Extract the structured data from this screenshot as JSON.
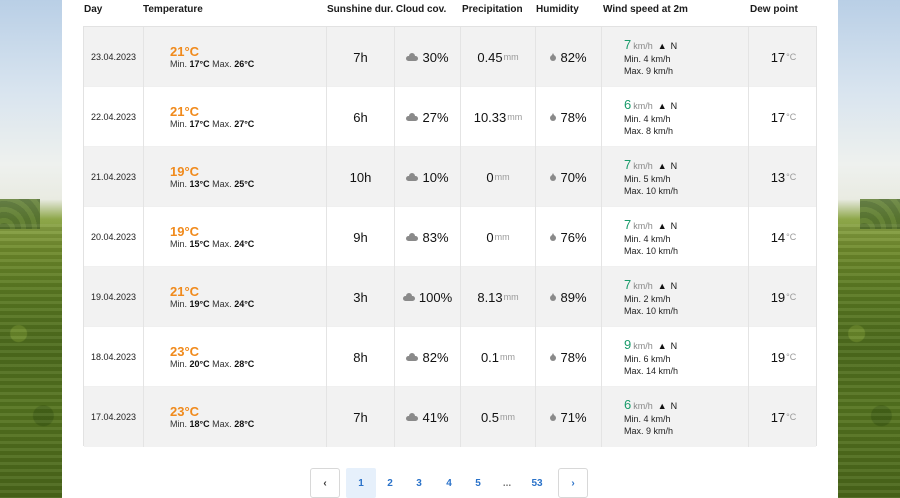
{
  "headers": {
    "day": "Day",
    "temperature": "Temperature",
    "sunshine_cloud": "Sunshine dur. Cloud cov.",
    "precipitation": "Precipitation",
    "humidity": "Humidity",
    "wind": "Wind speed at 2m",
    "dew": "Dew point"
  },
  "labels": {
    "min": "Min.",
    "max": "Max.",
    "mm": "mm",
    "kmh": "km/h",
    "deg_c": "°C"
  },
  "rows": [
    {
      "day": "23.04.2023",
      "temp": "21°C",
      "tmin": "17°C",
      "tmax": "26°C",
      "sun": "7h",
      "cloud": "30%",
      "prec": "0.45",
      "hum": "82%",
      "wind": "7",
      "wdir": "N",
      "wmin": "4 km/h",
      "wmax": "9 km/h",
      "dew": "17"
    },
    {
      "day": "22.04.2023",
      "temp": "21°C",
      "tmin": "17°C",
      "tmax": "27°C",
      "sun": "6h",
      "cloud": "27%",
      "prec": "10.33",
      "hum": "78%",
      "wind": "6",
      "wdir": "N",
      "wmin": "4 km/h",
      "wmax": "8 km/h",
      "dew": "17"
    },
    {
      "day": "21.04.2023",
      "temp": "19°C",
      "tmin": "13°C",
      "tmax": "25°C",
      "sun": "10h",
      "cloud": "10%",
      "prec": "0",
      "hum": "70%",
      "wind": "7",
      "wdir": "N",
      "wmin": "5 km/h",
      "wmax": "10 km/h",
      "dew": "13"
    },
    {
      "day": "20.04.2023",
      "temp": "19°C",
      "tmin": "15°C",
      "tmax": "24°C",
      "sun": "9h",
      "cloud": "83%",
      "prec": "0",
      "hum": "76%",
      "wind": "7",
      "wdir": "N",
      "wmin": "4 km/h",
      "wmax": "10 km/h",
      "dew": "14"
    },
    {
      "day": "19.04.2023",
      "temp": "21°C",
      "tmin": "19°C",
      "tmax": "24°C",
      "sun": "3h",
      "cloud": "100%",
      "prec": "8.13",
      "hum": "89%",
      "wind": "7",
      "wdir": "N",
      "wmin": "2 km/h",
      "wmax": "10 km/h",
      "dew": "19"
    },
    {
      "day": "18.04.2023",
      "temp": "23°C",
      "tmin": "20°C",
      "tmax": "28°C",
      "sun": "8h",
      "cloud": "82%",
      "prec": "0.1",
      "hum": "78%",
      "wind": "9",
      "wdir": "N",
      "wmin": "6 km/h",
      "wmax": "14 km/h",
      "dew": "19"
    },
    {
      "day": "17.04.2023",
      "temp": "23°C",
      "tmin": "18°C",
      "tmax": "28°C",
      "sun": "7h",
      "cloud": "41%",
      "prec": "0.5",
      "hum": "71%",
      "wind": "6",
      "wdir": "N",
      "wmin": "4 km/h",
      "wmax": "9 km/h",
      "dew": "17"
    }
  ],
  "pagination": {
    "prev": "‹",
    "pages": [
      "1",
      "2",
      "3",
      "4",
      "5"
    ],
    "dots": "...",
    "last": "53",
    "next": "›",
    "active": "1"
  },
  "colors": {
    "temp_accent": "#f08a1c",
    "wind_accent": "#1a9b6b",
    "link": "#2a72c9"
  }
}
